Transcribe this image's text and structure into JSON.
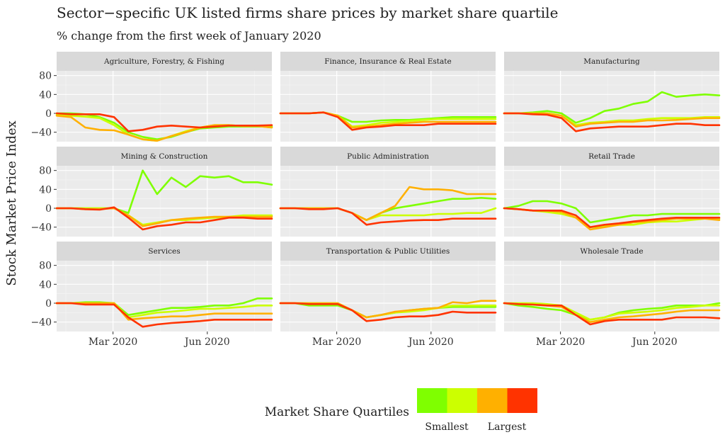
{
  "chart_data": {
    "type": "line",
    "title": "Sector−specific UK listed firms share prices by market share quartile",
    "subtitle": "% change from the first week of January 2020",
    "ylabel": "Stock Market Price Index",
    "xlabel": "",
    "x_range": [
      "2020-01-06",
      "2020-08-03"
    ],
    "ylim": [
      -60,
      90
    ],
    "y_ticks": [
      80,
      40,
      0,
      -40
    ],
    "y_tick_labels": [
      "80",
      "40",
      "0",
      "−40"
    ],
    "x_ticks": [
      "2020-03-01",
      "2020-06-01"
    ],
    "x_tick_labels": [
      "Mar 2020",
      "Jun 2020"
    ],
    "grid": true,
    "legend": {
      "position": "bottom",
      "title": "Market Share Quartiles",
      "low_label": "Smallest",
      "high_label": "Largest",
      "colors": [
        "#7fff00",
        "#ccff00",
        "#ffb000",
        "#ff3300"
      ]
    },
    "x": [
      "2020-01-06",
      "2020-01-20",
      "2020-02-03",
      "2020-02-17",
      "2020-03-02",
      "2020-03-16",
      "2020-03-30",
      "2020-04-13",
      "2020-04-27",
      "2020-05-11",
      "2020-05-25",
      "2020-06-08",
      "2020-06-22",
      "2020-07-06",
      "2020-07-20",
      "2020-08-03"
    ],
    "facets": [
      {
        "name": "Agriculture, Forestry, & Fishing",
        "series": [
          {
            "values": [
              0,
              0,
              -2,
              -8,
              -20,
              -40,
              -50,
              -55,
              -50,
              -40,
              -32,
              -30,
              -28,
              -28,
              -28,
              -28
            ]
          },
          {
            "values": [
              -3,
              -5,
              -7,
              -10,
              -25,
              -45,
              -55,
              -58,
              -48,
              -38,
              -30,
              -25,
              -25,
              -27,
              -27,
              -30
            ]
          },
          {
            "values": [
              -5,
              -8,
              -30,
              -35,
              -36,
              -45,
              -55,
              -58,
              -48,
              -40,
              -30,
              -25,
              -25,
              -27,
              -27,
              -30
            ]
          },
          {
            "values": [
              0,
              -2,
              -2,
              -2,
              -8,
              -38,
              -35,
              -28,
              -26,
              -28,
              -30,
              -28,
              -26,
              -26,
              -26,
              -25
            ]
          }
        ]
      },
      {
        "name": "Finance, Insurance & Real Estate",
        "series": [
          {
            "values": [
              0,
              0,
              0,
              2,
              -5,
              -18,
              -18,
              -15,
              -14,
              -14,
              -12,
              -10,
              -8,
              -8,
              -8,
              -8
            ]
          },
          {
            "values": [
              0,
              0,
              0,
              2,
              -5,
              -28,
              -25,
              -20,
              -18,
              -16,
              -14,
              -12,
              -12,
              -12,
              -12,
              -12
            ]
          },
          {
            "values": [
              0,
              0,
              0,
              2,
              -5,
              -30,
              -28,
              -25,
              -22,
              -20,
              -18,
              -18,
              -18,
              -18,
              -18,
              -18
            ]
          },
          {
            "values": [
              0,
              0,
              0,
              2,
              -8,
              -35,
              -30,
              -28,
              -25,
              -25,
              -25,
              -22,
              -22,
              -22,
              -22,
              -22
            ]
          }
        ]
      },
      {
        "name": "Manufacturing",
        "series": [
          {
            "values": [
              0,
              0,
              2,
              5,
              0,
              -20,
              -10,
              5,
              10,
              20,
              25,
              45,
              35,
              38,
              40,
              38
            ]
          },
          {
            "values": [
              0,
              0,
              0,
              0,
              -5,
              -25,
              -20,
              -18,
              -15,
              -15,
              -12,
              -10,
              -10,
              -10,
              -8,
              -8
            ]
          },
          {
            "values": [
              0,
              0,
              0,
              0,
              -5,
              -28,
              -22,
              -20,
              -18,
              -18,
              -15,
              -15,
              -14,
              -12,
              -10,
              -10
            ]
          },
          {
            "values": [
              0,
              0,
              -2,
              -3,
              -10,
              -38,
              -32,
              -30,
              -28,
              -28,
              -28,
              -25,
              -22,
              -22,
              -25,
              -25
            ]
          }
        ]
      },
      {
        "name": "Mining & Construction",
        "series": [
          {
            "values": [
              0,
              0,
              0,
              0,
              0,
              -10,
              80,
              30,
              65,
              45,
              68,
              65,
              68,
              55,
              55,
              50
            ]
          },
          {
            "values": [
              0,
              0,
              0,
              0,
              0,
              -15,
              -35,
              -30,
              -25,
              -25,
              -22,
              -20,
              -18,
              -15,
              -15,
              -15
            ]
          },
          {
            "values": [
              0,
              0,
              -2,
              -2,
              0,
              -15,
              -38,
              -32,
              -25,
              -22,
              -20,
              -18,
              -18,
              -18,
              -18,
              -18
            ]
          },
          {
            "values": [
              0,
              0,
              -2,
              -3,
              2,
              -20,
              -45,
              -38,
              -35,
              -30,
              -30,
              -25,
              -20,
              -20,
              -22,
              -22
            ]
          }
        ]
      },
      {
        "name": "Public Administration",
        "series": [
          {
            "values": [
              0,
              0,
              0,
              0,
              0,
              -10,
              -25,
              -10,
              0,
              5,
              10,
              15,
              20,
              20,
              22,
              20
            ]
          },
          {
            "values": [
              0,
              0,
              0,
              0,
              0,
              -10,
              -25,
              -15,
              -15,
              -15,
              -15,
              -12,
              -12,
              -10,
              -10,
              0
            ]
          },
          {
            "values": [
              0,
              0,
              0,
              0,
              0,
              -10,
              -25,
              -10,
              5,
              45,
              40,
              40,
              38,
              30,
              30,
              30
            ]
          },
          {
            "values": [
              0,
              0,
              -2,
              -2,
              0,
              -10,
              -35,
              -30,
              -28,
              -26,
              -25,
              -25,
              -22,
              -22,
              -22,
              -22
            ]
          }
        ]
      },
      {
        "name": "Retail Trade",
        "series": [
          {
            "values": [
              0,
              5,
              15,
              15,
              10,
              0,
              -30,
              -25,
              -20,
              -15,
              -15,
              -12,
              -12,
              -12,
              -12,
              -12
            ]
          },
          {
            "values": [
              0,
              -2,
              -5,
              -8,
              -12,
              -20,
              -40,
              -38,
              -35,
              -35,
              -30,
              -28,
              -28,
              -25,
              -22,
              -22
            ]
          },
          {
            "values": [
              0,
              -2,
              -5,
              -5,
              -8,
              -20,
              -45,
              -40,
              -35,
              -30,
              -28,
              -25,
              -22,
              -22,
              -22,
              -25
            ]
          },
          {
            "values": [
              0,
              -2,
              -5,
              -5,
              -5,
              -15,
              -40,
              -35,
              -32,
              -28,
              -25,
              -22,
              -20,
              -20,
              -20,
              -20
            ]
          }
        ]
      },
      {
        "name": "Services",
        "series": [
          {
            "values": [
              0,
              0,
              2,
              2,
              0,
              -25,
              -20,
              -15,
              -10,
              -10,
              -8,
              -5,
              -5,
              0,
              10,
              10
            ]
          },
          {
            "values": [
              0,
              0,
              0,
              0,
              0,
              -30,
              -25,
              -20,
              -18,
              -15,
              -12,
              -12,
              -10,
              -8,
              -5,
              -5
            ]
          },
          {
            "values": [
              0,
              0,
              0,
              0,
              0,
              -35,
              -32,
              -30,
              -28,
              -28,
              -25,
              -22,
              -22,
              -22,
              -22,
              -22
            ]
          },
          {
            "values": [
              0,
              0,
              -3,
              -3,
              -3,
              -30,
              -50,
              -45,
              -42,
              -40,
              -38,
              -35,
              -35,
              -35,
              -35,
              -35
            ]
          }
        ]
      },
      {
        "name": "Transportation & Public Utilities",
        "series": [
          {
            "values": [
              0,
              0,
              -5,
              -5,
              -5,
              -15,
              -30,
              -25,
              -20,
              -15,
              -12,
              -10,
              -8,
              -8,
              -8,
              -8
            ]
          },
          {
            "values": [
              0,
              0,
              0,
              0,
              0,
              -15,
              -30,
              -25,
              -20,
              -18,
              -15,
              -10,
              -5,
              -5,
              -5,
              -5
            ]
          },
          {
            "values": [
              0,
              0,
              0,
              0,
              0,
              -15,
              -30,
              -25,
              -18,
              -15,
              -12,
              -10,
              2,
              0,
              5,
              5
            ]
          },
          {
            "values": [
              0,
              0,
              -2,
              -2,
              -2,
              -15,
              -38,
              -35,
              -30,
              -28,
              -28,
              -25,
              -18,
              -20,
              -20,
              -20
            ]
          }
        ]
      },
      {
        "name": "Wholesale Trade",
        "series": [
          {
            "values": [
              0,
              -5,
              -8,
              -12,
              -15,
              -25,
              -35,
              -30,
              -20,
              -15,
              -12,
              -10,
              -5,
              -5,
              -5,
              0
            ]
          },
          {
            "values": [
              0,
              0,
              0,
              -2,
              -5,
              -20,
              -35,
              -30,
              -22,
              -20,
              -18,
              -15,
              -10,
              -8,
              -5,
              -5
            ]
          },
          {
            "values": [
              0,
              -2,
              -3,
              -5,
              -8,
              -25,
              -40,
              -35,
              -30,
              -28,
              -25,
              -22,
              -18,
              -15,
              -15,
              -15
            ]
          },
          {
            "values": [
              0,
              -2,
              -3,
              -5,
              -5,
              -25,
              -45,
              -38,
              -35,
              -35,
              -35,
              -35,
              -30,
              -30,
              -30,
              -32
            ]
          }
        ]
      }
    ]
  }
}
